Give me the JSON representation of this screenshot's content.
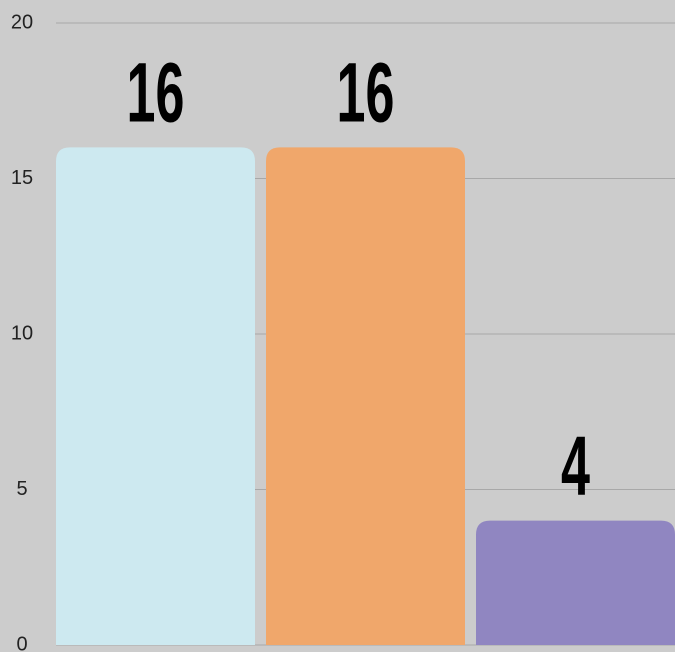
{
  "chart_data": {
    "type": "bar",
    "categories": [
      null,
      null,
      null
    ],
    "values": [
      16,
      16,
      4
    ],
    "colors": [
      "#cde9f0",
      "#f0a76b",
      "#9086c1"
    ],
    "ylim": [
      0,
      20
    ],
    "yticks": [
      0,
      5,
      10,
      15,
      20
    ],
    "grid": true
  }
}
